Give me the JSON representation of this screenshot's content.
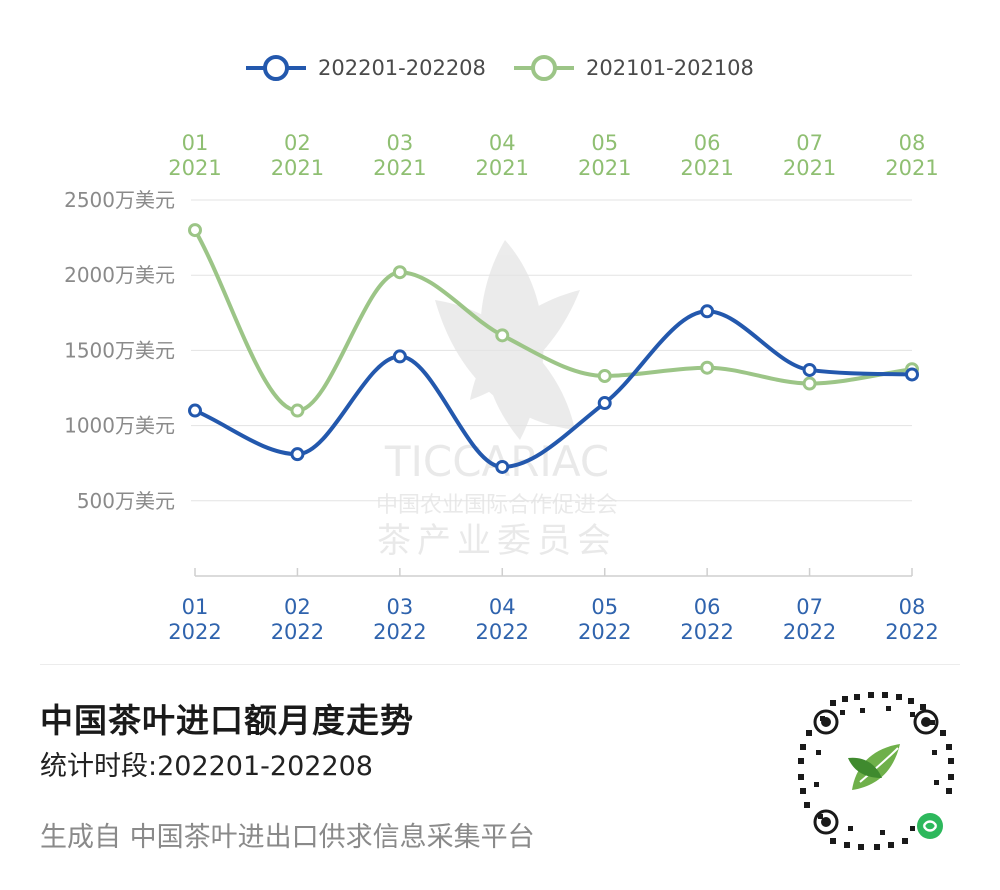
{
  "chart_data": {
    "type": "line",
    "categories_bottom": [
      {
        "month": "01",
        "year": "2022"
      },
      {
        "month": "02",
        "year": "2022"
      },
      {
        "month": "03",
        "year": "2022"
      },
      {
        "month": "04",
        "year": "2022"
      },
      {
        "month": "05",
        "year": "2022"
      },
      {
        "month": "06",
        "year": "2022"
      },
      {
        "month": "07",
        "year": "2022"
      },
      {
        "month": "08",
        "year": "2022"
      }
    ],
    "categories_top": [
      {
        "month": "01",
        "year": "2021"
      },
      {
        "month": "02",
        "year": "2021"
      },
      {
        "month": "03",
        "year": "2021"
      },
      {
        "month": "04",
        "year": "2021"
      },
      {
        "month": "05",
        "year": "2021"
      },
      {
        "month": "06",
        "year": "2021"
      },
      {
        "month": "07",
        "year": "2021"
      },
      {
        "month": "08",
        "year": "2021"
      }
    ],
    "series": [
      {
        "name": "202201-202208",
        "color": "#2358ad",
        "values": [
          1100,
          810,
          1460,
          725,
          1150,
          1760,
          1370,
          1340
        ]
      },
      {
        "name": "202101-202108",
        "color": "#9cc587",
        "values": [
          2300,
          1100,
          2020,
          1600,
          1330,
          1385,
          1280,
          1375
        ]
      }
    ],
    "y_ticks": [
      {
        "value": 500,
        "label": "500万美元"
      },
      {
        "value": 1000,
        "label": "1000万美元"
      },
      {
        "value": 1500,
        "label": "1500万美元"
      },
      {
        "value": 2000,
        "label": "2000万美元"
      },
      {
        "value": 2500,
        "label": "2500万美元"
      }
    ],
    "ylim": [
      0,
      2500
    ],
    "legend_position": "top-center",
    "grid": true
  },
  "footer": {
    "title": "中国茶叶进口额月度走势",
    "subtitle": "统计时段:202201-202208",
    "source": "生成自 中国茶叶进出口供求信息采集平台"
  },
  "watermark": {
    "org_code": "TICCARIAC",
    "org_name": "中国农业国际合作促进会",
    "committee": "茶产业委员会"
  },
  "qr_code": {
    "icon": "qr-code-icon"
  }
}
